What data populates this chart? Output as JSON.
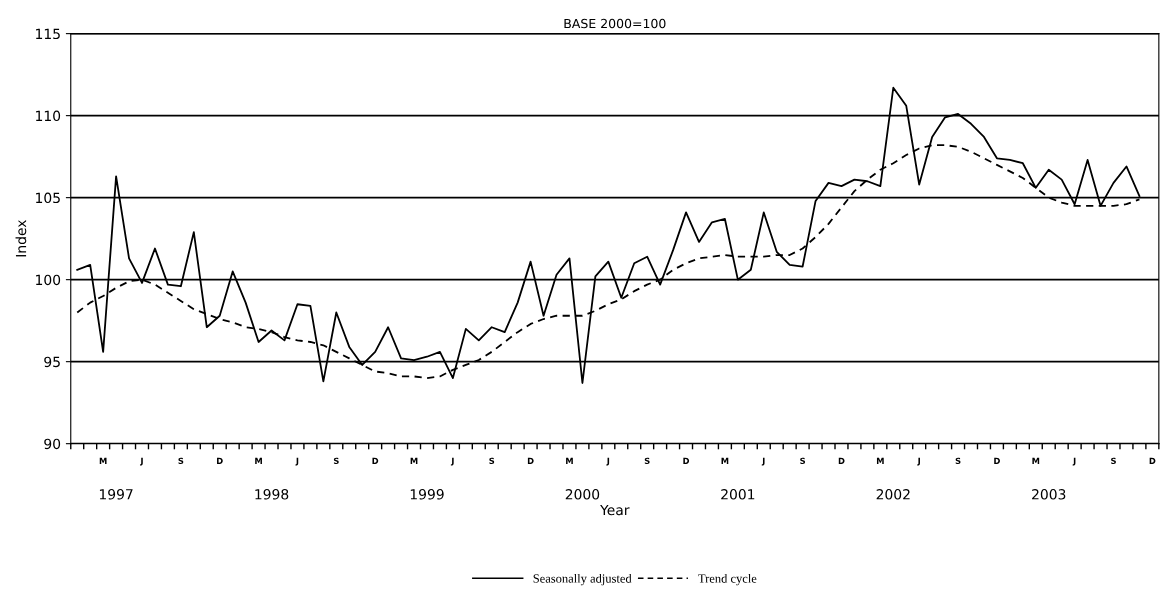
{
  "chart_data": {
    "type": "line",
    "title": "BASE 2000=100",
    "xlabel": "Year",
    "ylabel": "Index",
    "categories": [
      null,
      null,
      "M",
      null,
      null,
      "J",
      null,
      null,
      "S",
      null,
      null,
      "D",
      null,
      null,
      "M",
      null,
      null,
      "J",
      null,
      null,
      "S",
      null,
      null,
      "D",
      null,
      null,
      "M",
      null,
      null,
      "J",
      null,
      null,
      "S",
      null,
      null,
      "D",
      null,
      null,
      "M",
      null,
      null,
      "J",
      null,
      null,
      "S",
      null,
      null,
      "D",
      null,
      null,
      "M",
      null,
      null,
      "J",
      null,
      null,
      "S",
      null,
      null,
      "D",
      null,
      null,
      "M",
      null,
      null,
      "J",
      null,
      null,
      "S",
      null,
      null,
      "D",
      null,
      null,
      "M",
      null,
      null,
      "J",
      null,
      null,
      "S",
      null,
      null,
      "D"
    ],
    "series": [
      {
        "name": "Seasonally adjusted",
        "color": "#000000",
        "line_style": "solid",
        "values": [
          100.6,
          100.9,
          95.6,
          106.3,
          101.3,
          99.8,
          101.9,
          99.7,
          99.6,
          102.9,
          97.1,
          97.8,
          100.5,
          98.6,
          96.2,
          96.9,
          96.3,
          98.5,
          98.4,
          93.8,
          98.0,
          95.9,
          94.8,
          95.6,
          97.1,
          95.2,
          95.1,
          95.3,
          95.6,
          94.0,
          97.0,
          96.3,
          97.1,
          96.8,
          98.6,
          101.1,
          97.8,
          100.3,
          101.3,
          93.7,
          100.2,
          101.1,
          98.9,
          101.0,
          101.4,
          99.7,
          101.8,
          104.1,
          102.3,
          103.5,
          103.7,
          100.0,
          100.6,
          104.1,
          101.7,
          100.9,
          100.8,
          104.8,
          105.9,
          105.7,
          106.1,
          106.0,
          105.7,
          111.7,
          110.6,
          105.8,
          108.7,
          109.9,
          110.1,
          109.5,
          108.7,
          107.4,
          107.3,
          107.1,
          105.6,
          106.7,
          106.1,
          104.6,
          107.3,
          104.5,
          105.9,
          106.9,
          105.1,
          null
        ]
      },
      {
        "name": "Trend cycle",
        "color": "#000000",
        "line_style": "dashed",
        "values": [
          98.0,
          98.6,
          99.0,
          99.5,
          99.9,
          100.0,
          99.7,
          99.2,
          98.7,
          98.2,
          97.9,
          97.6,
          97.4,
          97.1,
          97.0,
          96.8,
          96.5,
          96.3,
          96.2,
          96.0,
          95.6,
          95.2,
          94.8,
          94.4,
          94.3,
          94.1,
          94.1,
          94.0,
          94.1,
          94.5,
          94.8,
          95.1,
          95.6,
          96.2,
          96.8,
          97.3,
          97.6,
          97.8,
          97.8,
          97.8,
          98.1,
          98.5,
          98.8,
          99.3,
          99.7,
          100.0,
          100.6,
          101.0,
          101.3,
          101.4,
          101.5,
          101.4,
          101.4,
          101.4,
          101.5,
          101.5,
          101.9,
          102.6,
          103.4,
          104.4,
          105.4,
          106.1,
          106.7,
          107.1,
          107.6,
          108.0,
          108.2,
          108.2,
          108.1,
          107.8,
          107.4,
          107.0,
          106.6,
          106.2,
          105.6,
          105.0,
          104.7,
          104.5,
          104.5,
          104.5,
          104.5,
          104.6,
          104.9,
          null
        ]
      }
    ],
    "annotations": [
      "1997",
      "1998",
      "1999",
      "2000",
      "2001",
      "2002",
      "2003"
    ],
    "ylim": [
      90,
      115
    ],
    "yticks": [
      90,
      95,
      100,
      105,
      110,
      115
    ],
    "grid": "y",
    "legend": "bottom",
    "marker": "none"
  }
}
